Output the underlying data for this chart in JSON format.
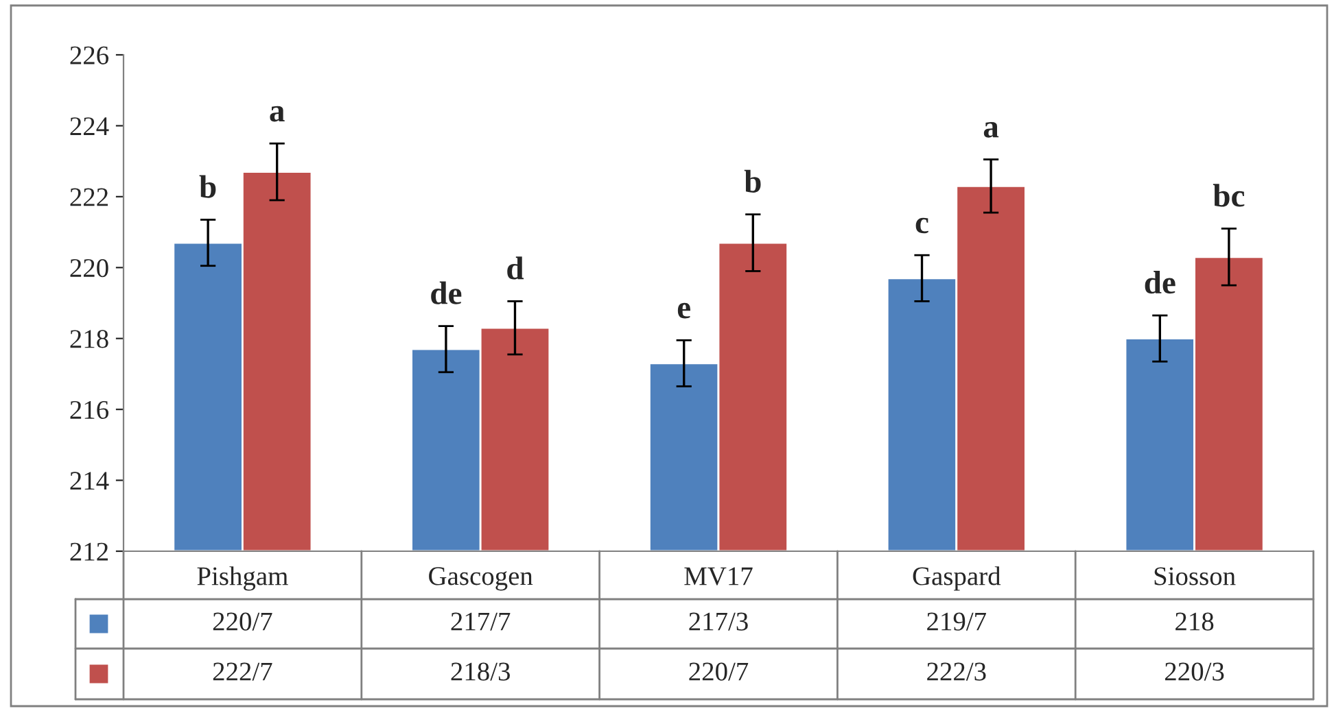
{
  "chart_data": {
    "type": "bar",
    "categories": [
      "Pishgam",
      "Gascogen",
      "MV17",
      "Gaspard",
      "Siosson"
    ],
    "series": [
      {
        "color": "#4f81bd",
        "values": [
          220.7,
          217.7,
          217.3,
          219.7,
          218
        ],
        "errors": [
          0.65,
          0.65,
          0.65,
          0.65,
          0.65
        ],
        "value_labels": [
          "220/7",
          "217/7",
          "217/3",
          "219/7",
          "218"
        ]
      },
      {
        "color": "#c0504d",
        "values": [
          222.7,
          218.3,
          220.7,
          222.3,
          220.3
        ],
        "errors": [
          0.8,
          0.75,
          0.8,
          0.75,
          0.8
        ],
        "value_labels": [
          "222/7",
          "218/3",
          "220/7",
          "222/3",
          "220/3"
        ]
      }
    ],
    "ylim": [
      212,
      226
    ],
    "yticks": [
      212,
      214,
      216,
      218,
      220,
      222,
      224,
      226
    ],
    "grid": false,
    "annotations": [
      "b",
      "a",
      "de",
      "d",
      "e",
      "b",
      "c",
      "a",
      "de",
      "bc"
    ]
  }
}
